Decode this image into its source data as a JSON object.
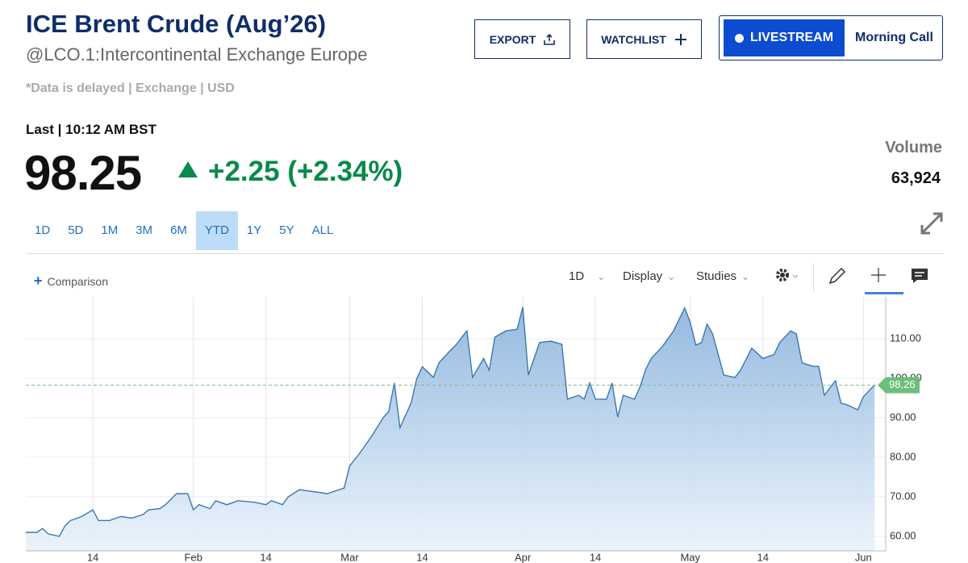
{
  "header": {
    "title": "ICE Brent Crude (Aug’26)",
    "subtitle": "@LCO.1:Intercontinental Exchange Europe",
    "delay_note": "*Data is delayed | Exchange | USD",
    "last_time": "Last | 10:12 AM BST",
    "price": "98.25",
    "change": "+2.25 (+2.34%)",
    "volume_label": "Volume",
    "volume": "63,924"
  },
  "buttons": {
    "export": "EXPORT",
    "watchlist": "WATCHLIST",
    "livestream": "LIVESTREAM",
    "morning_call": "Morning Call"
  },
  "ranges": [
    {
      "label": "1D",
      "selected": false
    },
    {
      "label": "5D",
      "selected": false
    },
    {
      "label": "1M",
      "selected": false
    },
    {
      "label": "3M",
      "selected": false
    },
    {
      "label": "6M",
      "selected": false
    },
    {
      "label": "YTD",
      "selected": true
    },
    {
      "label": "1Y",
      "selected": false
    },
    {
      "label": "5Y",
      "selected": false
    },
    {
      "label": "ALL",
      "selected": false
    }
  ],
  "toolbar": {
    "comparison": "Comparison",
    "interval": "1D",
    "display": "Display",
    "studies": "Studies"
  },
  "chart_data": {
    "type": "area",
    "color": "#3b78b0",
    "last_value": {
      "value": 98.26,
      "label": "98.26"
    },
    "x": [
      2,
      4,
      5,
      6,
      8,
      9,
      10,
      12,
      14,
      15,
      17,
      19,
      21,
      23,
      24,
      26,
      27,
      29,
      31,
      32,
      33,
      35,
      36,
      38,
      40,
      43,
      45,
      46,
      48,
      49,
      51,
      54,
      56,
      59,
      60,
      62,
      64,
      66,
      67,
      68,
      69,
      71,
      72,
      73,
      75,
      76,
      78,
      79,
      81,
      82,
      84,
      85,
      86,
      88,
      90,
      91,
      92,
      94,
      96,
      98,
      99,
      101,
      102,
      103,
      104,
      106,
      107,
      108,
      109,
      111,
      112,
      113,
      114,
      116,
      118,
      120,
      121,
      122,
      123,
      124,
      125,
      127,
      129,
      130,
      132,
      134,
      136,
      137,
      139,
      140,
      141,
      143,
      144,
      145,
      147,
      148,
      149,
      151,
      152,
      154
    ],
    "series": [
      {
        "name": "LCO.1",
        "values": [
          61,
          61,
          62,
          60.6,
          60,
          62.6,
          64,
          65,
          66.7,
          64,
          64,
          65,
          64.6,
          65.5,
          66.7,
          67,
          68,
          70.8,
          70.8,
          66.7,
          68,
          67,
          69,
          68,
          69,
          68.6,
          68,
          69,
          68,
          70,
          71.8,
          71.2,
          70.8,
          72.2,
          77.8,
          81.4,
          85.5,
          90,
          91.6,
          98.8,
          87.5,
          93.7,
          99.8,
          102.9,
          100.2,
          103.9,
          107,
          108.4,
          112,
          100.2,
          105,
          102,
          110.4,
          112,
          112.4,
          118,
          100.8,
          109,
          109.4,
          108.6,
          94.7,
          95.7,
          94.7,
          98.8,
          94.7,
          94.7,
          98.8,
          90.2,
          95.7,
          94.7,
          97.8,
          102.2,
          105,
          108,
          112,
          117.8,
          114.1,
          108.4,
          109,
          113.7,
          111.2,
          100.8,
          100.2,
          102,
          107.6,
          105,
          106,
          109,
          112,
          111.2,
          103.9,
          103,
          103,
          95.7,
          99.4,
          93.7,
          93.3,
          92,
          95.3,
          98.3
        ]
      }
    ],
    "xlim": [
      2,
      156
    ],
    "xticks": [
      {
        "value": 14,
        "label": "14"
      },
      {
        "value": 32,
        "label": "Feb"
      },
      {
        "value": 45,
        "label": "14"
      },
      {
        "value": 60,
        "label": "Mar"
      },
      {
        "value": 73,
        "label": "14"
      },
      {
        "value": 91,
        "label": "Apr"
      },
      {
        "value": 104,
        "label": "14"
      },
      {
        "value": 121,
        "label": "May"
      },
      {
        "value": 134,
        "label": "14"
      },
      {
        "value": 152,
        "label": "Jun"
      }
    ],
    "ylim": [
      56.3,
      120.6
    ],
    "yticks": [
      {
        "value": 60,
        "label": "60.00"
      },
      {
        "value": 70,
        "label": "70.00"
      },
      {
        "value": 80,
        "label": "80.00"
      },
      {
        "value": 90,
        "label": "90.00"
      },
      {
        "value": 100,
        "label": "100.00"
      },
      {
        "value": 110,
        "label": "110.00"
      }
    ],
    "grid": true
  }
}
